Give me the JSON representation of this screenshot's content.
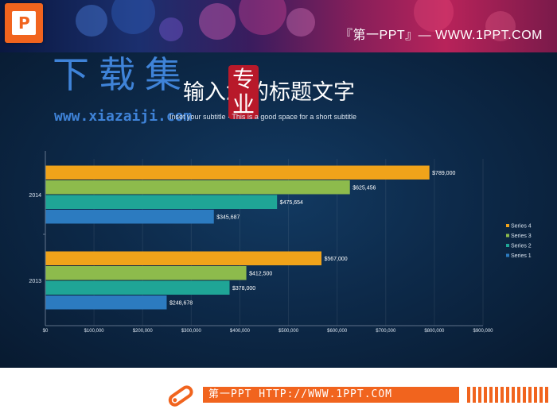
{
  "header": {
    "site_text": "『第一PPT』— WWW.1PPT.COM"
  },
  "watermark": {
    "big_text": "下载集",
    "url": "www.xiazaiji.com"
  },
  "slide": {
    "title": "输入您的标题文字",
    "seal_text": "专业",
    "subtitle": "Inset your subtitle · This is a good space for a short subtitle"
  },
  "chart_data": {
    "type": "bar",
    "orientation": "horizontal",
    "categories": [
      "2013",
      "2014"
    ],
    "series": [
      {
        "name": "Series 1",
        "color": "#2c7bc0",
        "values": [
          248678,
          345687
        ],
        "labels": [
          "$248,678",
          "$345,687"
        ]
      },
      {
        "name": "Series 2",
        "color": "#1fa596",
        "values": [
          378000,
          475654
        ],
        "labels": [
          "$378,000",
          "$475,654"
        ]
      },
      {
        "name": "Series 3",
        "color": "#8dbb4c",
        "values": [
          412500,
          625456
        ],
        "labels": [
          "$412,500",
          "$625,456"
        ]
      },
      {
        "name": "Series 4",
        "color": "#f0a31a",
        "values": [
          567000,
          789000
        ],
        "labels": [
          "$567,000",
          "$789,000"
        ]
      }
    ],
    "xticks": [
      "$0",
      "$100,000",
      "$200,000",
      "$300,000",
      "$400,000",
      "$500,000",
      "$600,000",
      "$700,000",
      "$800,000",
      "$900,000"
    ],
    "xlim": [
      0,
      900000
    ],
    "legend_position": "right",
    "grid": true
  },
  "footer": {
    "text": "第一PPT HTTP://WWW.1PPT.COM"
  }
}
